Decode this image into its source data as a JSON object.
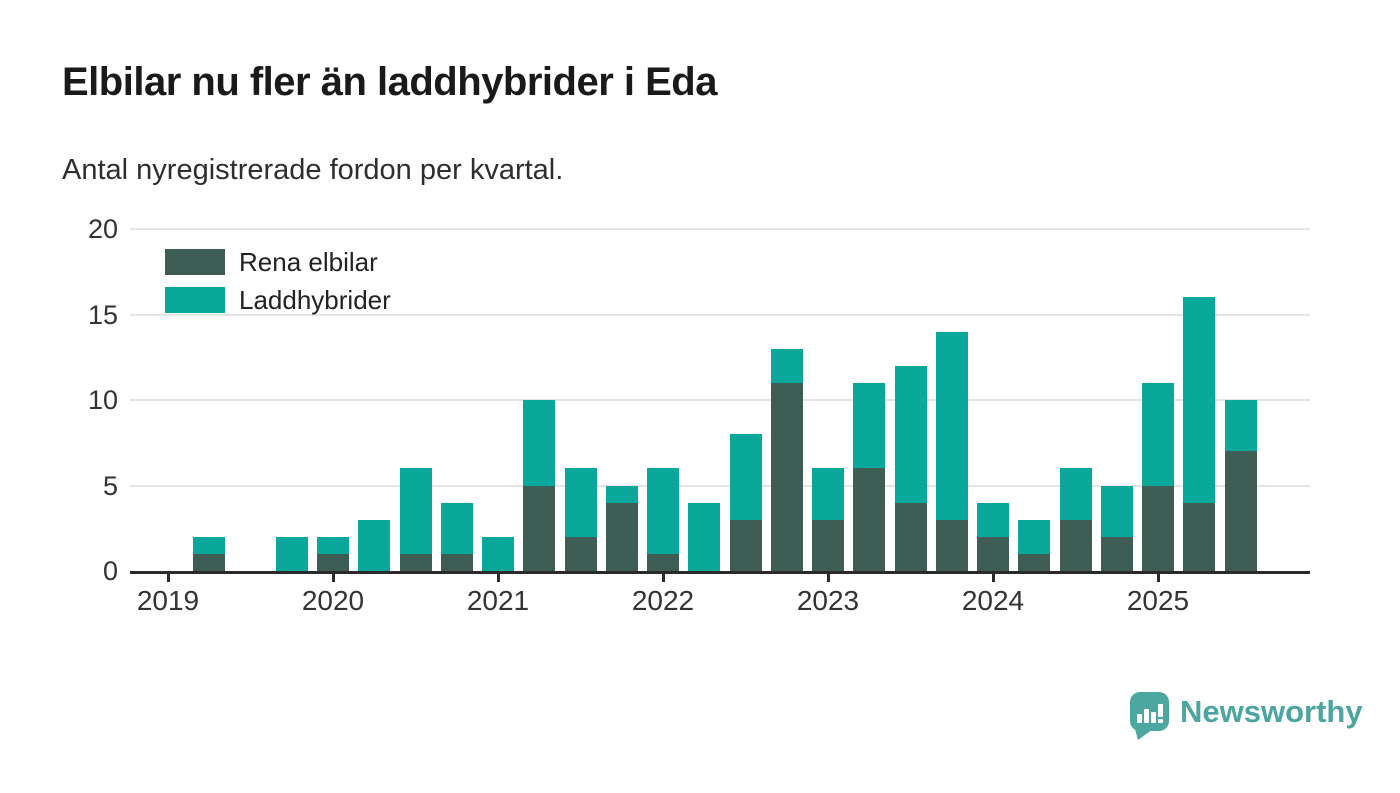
{
  "header": {
    "title": "Elbilar nu fler än laddhybrider i Eda",
    "subtitle": "Antal nyregistrerade fordon per kvartal."
  },
  "chart_data": {
    "type": "bar",
    "stacked": true,
    "title": "Elbilar nu fler än laddhybrider i Eda",
    "subtitle": "Antal nyregistrerade fordon per kvartal.",
    "categories": [
      "2019 Q1",
      "2019 Q2",
      "2019 Q3",
      "2019 Q4",
      "2020 Q1",
      "2020 Q2",
      "2020 Q3",
      "2020 Q4",
      "2021 Q1",
      "2021 Q2",
      "2021 Q3",
      "2021 Q4",
      "2022 Q1",
      "2022 Q2",
      "2022 Q3",
      "2022 Q4",
      "2023 Q1",
      "2023 Q2",
      "2023 Q3",
      "2023 Q4",
      "2024 Q1",
      "2024 Q2",
      "2024 Q3",
      "2024 Q4",
      "2025 Q1",
      "2025 Q2",
      "2025 Q3"
    ],
    "series": [
      {
        "name": "Rena elbilar",
        "color": "#3d5d55",
        "values": [
          0,
          1,
          0,
          0,
          1,
          0,
          1,
          1,
          0,
          5,
          2,
          4,
          1,
          0,
          3,
          11,
          3,
          6,
          4,
          3,
          2,
          1,
          3,
          2,
          5,
          4,
          7
        ]
      },
      {
        "name": "Laddhybrider",
        "color": "#0aa79b",
        "values": [
          0,
          1,
          0,
          2,
          1,
          3,
          5,
          3,
          2,
          5,
          4,
          1,
          5,
          4,
          5,
          2,
          3,
          5,
          8,
          11,
          2,
          2,
          3,
          3,
          6,
          12,
          3
        ]
      }
    ],
    "x_tick_labels": [
      "2019",
      "2020",
      "2021",
      "2022",
      "2023",
      "2024",
      "2025"
    ],
    "y_ticks": [
      0,
      5,
      10,
      15,
      20
    ],
    "ylim": [
      0,
      20
    ],
    "grid": "horizontal",
    "legend_position": "top-left"
  },
  "footer": {
    "brand": "Newsworthy",
    "logo_icon": "newsworthy-logo"
  },
  "colors": {
    "ev": "#3d5d55",
    "hybrid": "#0aa79b",
    "axis": "#2b2b2b",
    "gridline": "#e4e4e4",
    "brand": "#4ca5a0"
  }
}
